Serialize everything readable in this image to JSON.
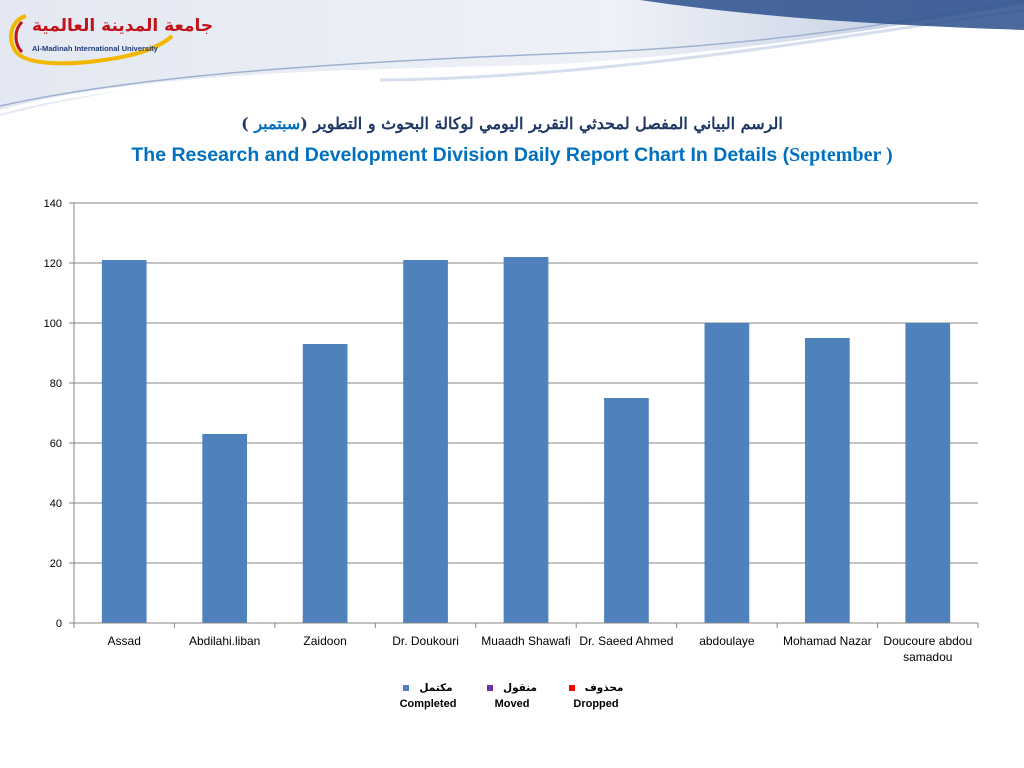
{
  "logo": {
    "arabic_name": "جامعة المدينة العالمية",
    "english_name": "Al-Madinah International University"
  },
  "title": {
    "arabic_main": "الرسم البياني المفصل لمحدثي التقرير اليومي لوكالة البحوث و التطوير (",
    "arabic_month": "سبتمبر",
    "arabic_close": " )",
    "english_main": "The Research and Development Division Daily Report Chart In Details (",
    "english_month": "September )"
  },
  "colors": {
    "bar": "#4f81bd",
    "completed": "#4f81bd",
    "moved": "#7030a0",
    "dropped": "#ff0000",
    "gridline": "#868686",
    "title_blue": "#0070c0"
  },
  "chart_data": {
    "type": "bar",
    "categories": [
      "Assad",
      "Abdilahi.liban",
      "Zaidoon",
      "Dr. Doukouri",
      "Muaadh Shawafi",
      "Dr. Saeed Ahmed",
      "abdoulaye",
      "Mohamad Nazar",
      "Doucoure abdou samadou"
    ],
    "series": [
      {
        "name": "Completed",
        "values": [
          121,
          63,
          93,
          121,
          122,
          75,
          100,
          95,
          100
        ]
      }
    ],
    "ylim": [
      0,
      140
    ],
    "yticks": [
      0,
      20,
      40,
      60,
      80,
      100,
      120,
      140
    ],
    "grid": true,
    "legend_position": "bottom",
    "legend": [
      {
        "arabic": "مكتمل",
        "english": "Completed",
        "color_key": "completed"
      },
      {
        "arabic": "منقول",
        "english": "Moved",
        "color_key": "moved"
      },
      {
        "arabic": "محذوف",
        "english": "Dropped",
        "color_key": "dropped"
      }
    ]
  }
}
